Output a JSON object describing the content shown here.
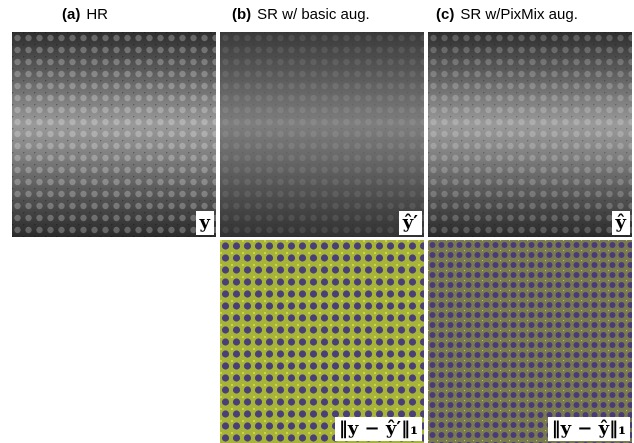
{
  "panels": [
    {
      "tag": "(a)",
      "caption": "HR",
      "image_label": "y"
    },
    {
      "tag": "(b)",
      "caption": "SR w/ basic aug.",
      "image_label": "ŷ′",
      "error_label": "‖y − ŷ′‖₁"
    },
    {
      "tag": "(c)",
      "caption": "SR w/PixMix aug.",
      "image_label": "ŷ",
      "error_label": "‖y − ŷ‖₁"
    }
  ]
}
